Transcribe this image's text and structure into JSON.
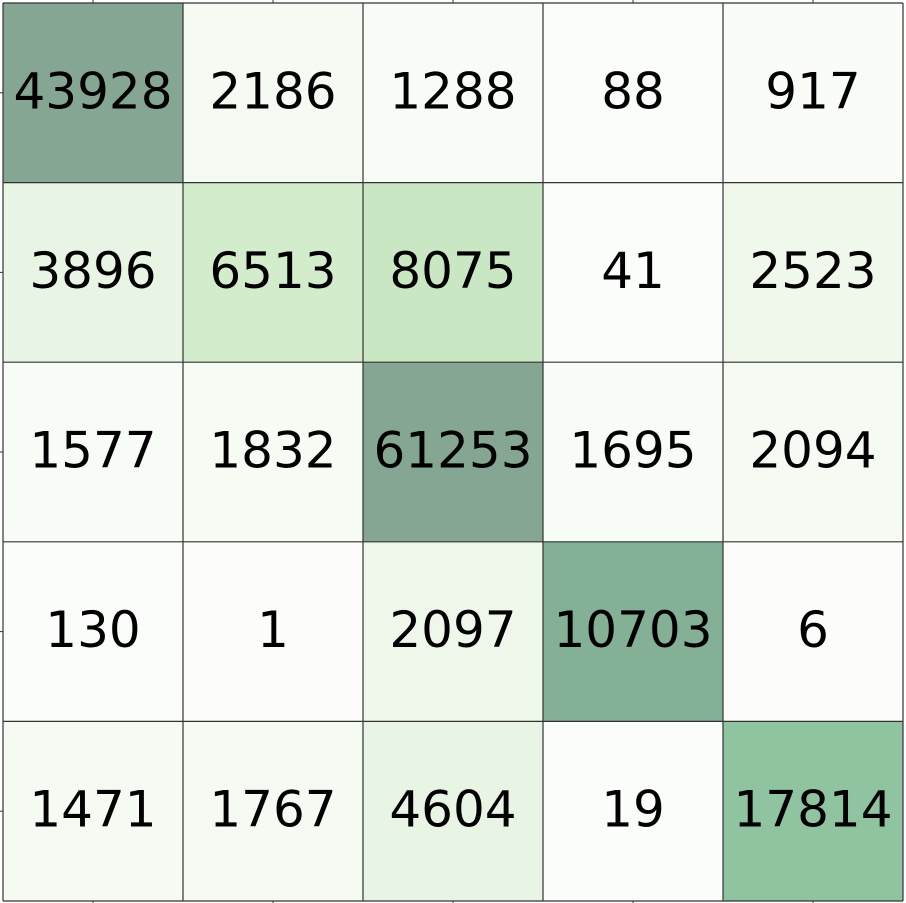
{
  "chart_data": {
    "type": "heatmap",
    "title": "",
    "xlabel": "",
    "ylabel": "",
    "rows": 5,
    "cols": 5,
    "values": [
      [
        43928,
        2186,
        1288,
        88,
        917
      ],
      [
        3896,
        6513,
        8075,
        41,
        2523
      ],
      [
        1577,
        1832,
        61253,
        1695,
        2094
      ],
      [
        130,
        1,
        2097,
        10703,
        6
      ],
      [
        1471,
        1767,
        4604,
        19,
        17814
      ]
    ],
    "colors": [
      [
        "#84a692",
        "#f5fbf3",
        "#f8fcf6",
        "#fbfdfa",
        "#f9fcf7"
      ],
      [
        "#e8f5e4",
        "#d3eccc",
        "#c8e7c2",
        "#fbfdfa",
        "#f0f8ec"
      ],
      [
        "#f8fcf6",
        "#f6fbf4",
        "#84a692",
        "#f8fcf6",
        "#f5fbf3"
      ],
      [
        "#fbfdfa",
        "#fcfdfb",
        "#eff7ea",
        "#84b096",
        "#fcfdfb"
      ],
      [
        "#f5fbf3",
        "#f5fbf3",
        "#e8f5e4",
        "#fbfdfa",
        "#90c3a0"
      ]
    ],
    "grid": true,
    "grid_color": "#333333",
    "colorbar": false,
    "legend": "none"
  }
}
